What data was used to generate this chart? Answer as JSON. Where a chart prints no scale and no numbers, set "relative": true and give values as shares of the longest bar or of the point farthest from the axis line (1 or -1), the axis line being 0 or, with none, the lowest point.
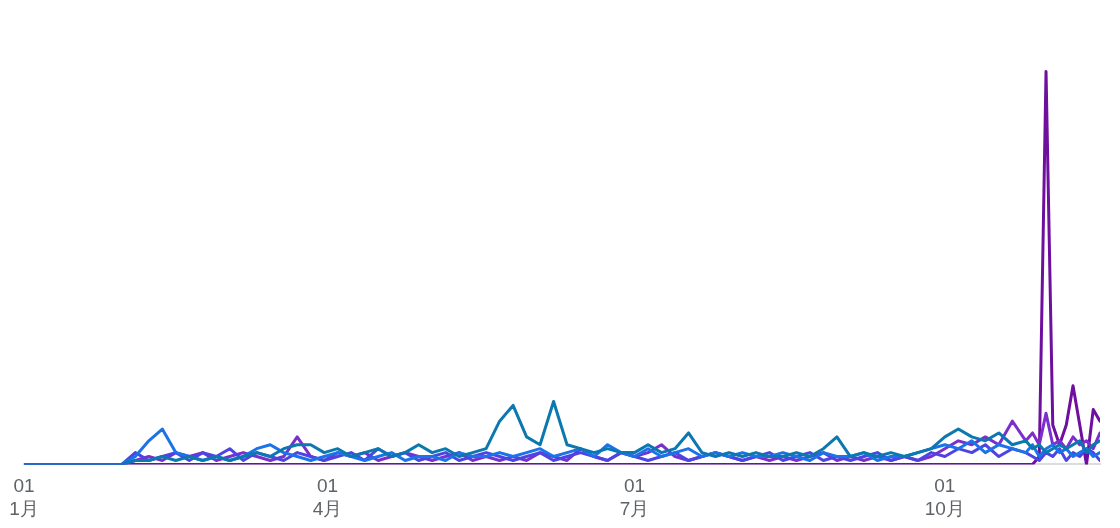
{
  "chart_data": {
    "type": "line",
    "relative": true,
    "legend": false,
    "marker": "none",
    "line_style": "solid",
    "xlim": [
      "--01-01",
      "--11-16"
    ],
    "xticks": [
      {
        "value": "--01-01",
        "label": "01\n1月"
      },
      {
        "value": "--04-01",
        "label": "01\n4月"
      },
      {
        "value": "--07-01",
        "label": "01\n7月"
      },
      {
        "value": "--10-01",
        "label": "01\n10月"
      }
    ],
    "x": [
      "--01-01",
      "--01-30",
      "--02-03",
      "--02-07",
      "--02-11",
      "--02-15",
      "--02-19",
      "--02-23",
      "--02-27",
      "--03-03",
      "--03-07",
      "--03-11",
      "--03-15",
      "--03-19",
      "--03-23",
      "--03-27",
      "--03-31",
      "--04-04",
      "--04-08",
      "--04-12",
      "--04-16",
      "--04-20",
      "--04-24",
      "--04-28",
      "--05-02",
      "--05-06",
      "--05-10",
      "--05-14",
      "--05-18",
      "--05-22",
      "--05-26",
      "--05-30",
      "--06-03",
      "--06-07",
      "--06-11",
      "--06-15",
      "--06-19",
      "--06-23",
      "--06-27",
      "--07-01",
      "--07-05",
      "--07-09",
      "--07-13",
      "--07-17",
      "--07-21",
      "--07-25",
      "--07-29",
      "--08-02",
      "--08-06",
      "--08-10",
      "--08-14",
      "--08-18",
      "--08-22",
      "--08-26",
      "--08-30",
      "--09-03",
      "--09-07",
      "--09-11",
      "--09-15",
      "--09-19",
      "--09-23",
      "--09-27",
      "--10-01",
      "--10-05",
      "--10-09",
      "--10-13",
      "--10-17",
      "--10-21",
      "--10-25",
      "--10-27",
      "--10-29",
      "--10-31",
      "--11-02",
      "--11-04",
      "--11-06",
      "--11-08",
      "--11-10",
      "--11-12",
      "--11-14",
      "--11-16"
    ],
    "series": [
      {
        "color": "#0b78b0",
        "values": [
          0,
          0,
          0.01,
          0.01,
          0.02,
          0.01,
          0.02,
          0.01,
          0.02,
          0.01,
          0.02,
          0.03,
          0.02,
          0.04,
          0.05,
          0.05,
          0.03,
          0.04,
          0.02,
          0.03,
          0.04,
          0.02,
          0.03,
          0.05,
          0.03,
          0.04,
          0.02,
          0.03,
          0.04,
          0.11,
          0.15,
          0.07,
          0.05,
          0.16,
          0.05,
          0.04,
          0.03,
          0.04,
          0.03,
          0.03,
          0.05,
          0.03,
          0.04,
          0.08,
          0.03,
          0.02,
          0.03,
          0.02,
          0.03,
          0.02,
          0.02,
          0.03,
          0.02,
          0.04,
          0.07,
          0.02,
          0.03,
          0.02,
          0.03,
          0.02,
          0.03,
          0.04,
          0.07,
          0.09,
          0.07,
          0.06,
          0.08,
          0.05,
          0.06,
          0.04,
          0.05,
          0.03,
          0.04,
          0.05,
          0.04,
          0.05,
          0.06,
          0.03,
          0.05,
          0.06
        ]
      },
      {
        "color": "#1a73e8",
        "values": [
          0,
          0,
          0.02,
          0.06,
          0.09,
          0.03,
          0.02,
          0.01,
          0.02,
          0.01,
          0.02,
          0.04,
          0.05,
          0.03,
          0.02,
          0.01,
          0.02,
          0.03,
          0.02,
          0.01,
          0.02,
          0.03,
          0.01,
          0.02,
          0.02,
          0.01,
          0.03,
          0.02,
          0.02,
          0.03,
          0.02,
          0.03,
          0.04,
          0.02,
          0.03,
          0.04,
          0.02,
          0.05,
          0.03,
          0.02,
          0.04,
          0.02,
          0.03,
          0.04,
          0.02,
          0.03,
          0.02,
          0.03,
          0.02,
          0.02,
          0.03,
          0.02,
          0.01,
          0.03,
          0.02,
          0.02,
          0.03,
          0.01,
          0.02,
          0.02,
          0.03,
          0.04,
          0.05,
          0.04,
          0.06,
          0.03,
          0.05,
          0.04,
          0.03,
          0.05,
          0.02,
          0.04,
          0.05,
          0.03,
          0.04,
          0.02,
          0.03,
          0.04,
          0.02,
          0.03
        ]
      },
      {
        "color": "#4d44e2",
        "values": [
          0,
          0,
          0.03,
          0.01,
          0.02,
          0.03,
          0.01,
          0.03,
          0.02,
          0.04,
          0.01,
          0.03,
          0.02,
          0.01,
          0.03,
          0.02,
          0.01,
          0.02,
          0.03,
          0.01,
          0.04,
          0.02,
          0.03,
          0.01,
          0.02,
          0.03,
          0.01,
          0.02,
          0.03,
          0.02,
          0.01,
          0.02,
          0.03,
          0.01,
          0.02,
          0.03,
          0.02,
          0.01,
          0.03,
          0.02,
          0.01,
          0.02,
          0.03,
          0.01,
          0.02,
          0.03,
          0.02,
          0.01,
          0.02,
          0.03,
          0.01,
          0.02,
          0.03,
          0.01,
          0.02,
          0.01,
          0.02,
          0.03,
          0.01,
          0.02,
          0.01,
          0.03,
          0.02,
          0.04,
          0.03,
          0.05,
          0.02,
          0.04,
          0.03,
          0.02,
          0.01,
          0.03,
          0.02,
          0.04,
          0.01,
          0.03,
          0.02,
          0.04,
          0.03,
          0.01
        ]
      },
      {
        "color": "#7c2fcc",
        "values": [
          0,
          0,
          0.01,
          0.02,
          0.01,
          0.03,
          0.02,
          0.03,
          0.01,
          0.02,
          0.03,
          0.02,
          0.01,
          0.02,
          0.07,
          0.02,
          0.01,
          0.03,
          0.02,
          0.03,
          0.01,
          0.02,
          0.03,
          0.02,
          0.01,
          0.02,
          0.03,
          0.01,
          0.02,
          0.01,
          0.02,
          0.01,
          0.03,
          0.02,
          0.01,
          0.04,
          0.02,
          0.01,
          0.03,
          0.02,
          0.03,
          0.05,
          0.02,
          0.01,
          0.02,
          0.03,
          0.02,
          0.01,
          0.02,
          0.01,
          0.02,
          0.01,
          0.02,
          0.03,
          0.01,
          0.02,
          0.01,
          0.02,
          0.01,
          0.02,
          0.01,
          0.02,
          0.04,
          0.06,
          0.05,
          0.07,
          0.05,
          0.11,
          0.06,
          0.08,
          0.05,
          0.13,
          0.05,
          0.06,
          0.04,
          0.07,
          0.05,
          0.06,
          0.04,
          0.08
        ]
      },
      {
        "color": "#6e0f9e",
        "values": [
          0,
          0,
          0,
          0,
          0,
          0,
          0,
          0,
          0,
          0,
          0,
          0,
          0,
          0,
          0,
          0,
          0,
          0,
          0,
          0,
          0,
          0,
          0,
          0,
          0,
          0,
          0,
          0,
          0,
          0,
          0,
          0,
          0,
          0,
          0,
          0,
          0,
          0,
          0,
          0,
          0,
          0,
          0,
          0,
          0,
          0,
          0,
          0,
          0,
          0,
          0,
          0,
          0,
          0,
          0,
          0,
          0,
          0,
          0,
          0,
          0,
          0,
          0,
          0,
          0,
          0,
          0,
          0,
          0,
          0,
          0.02,
          1,
          0.1,
          0.05,
          0.1,
          0.2,
          0.1,
          0,
          0.14,
          0.11
        ]
      }
    ]
  }
}
